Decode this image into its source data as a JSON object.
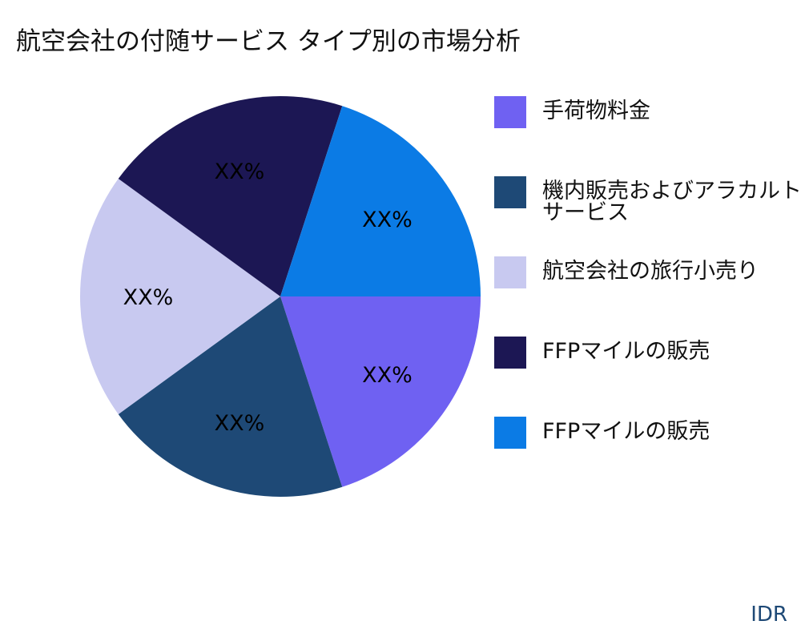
{
  "chart_data": {
    "type": "pie",
    "title": "航空会社の付随サービス タイプ別の市場分析",
    "categories": [
      "手荷物料金",
      "機内販売およびアラカルト\nサービス",
      "航空会社の旅行小売り",
      "FFPマイルの販売",
      "FFPマイルの販売"
    ],
    "values": [
      20,
      20,
      20,
      20,
      20
    ],
    "data_labels": [
      "XX%",
      "XX%",
      "XX%",
      "XX%",
      "XX%"
    ],
    "colors": [
      "#6f61f2",
      "#1e4976",
      "#c8c9f0",
      "#1c1754",
      "#0b7be5"
    ],
    "start_angle": "east, clockwise",
    "legend_position": "right"
  },
  "unit_label": "IDR"
}
